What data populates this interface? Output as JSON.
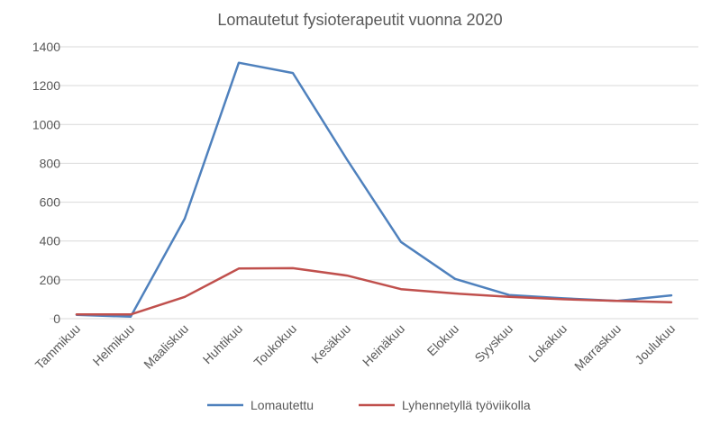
{
  "chart_data": {
    "type": "line",
    "title": "Lomautetut fysioterapeutit vuonna 2020",
    "xlabel": "",
    "ylabel": "",
    "categories": [
      "Tammikuu",
      "Helmikuu",
      "Maaliskuu",
      "Huhtikuu",
      "Toukokuu",
      "Kesäkuu",
      "Heinäkuu",
      "Elokuu",
      "Syyskuu",
      "Lokakuu",
      "Marraskuu",
      "Joulukuu"
    ],
    "ylim": [
      0,
      1400
    ],
    "yticks": [
      0,
      200,
      400,
      600,
      800,
      1000,
      1200,
      1400
    ],
    "grid": true,
    "legend_position": "bottom",
    "series": [
      {
        "name": "Lomautettu",
        "color": "#4f81bd",
        "values": [
          20,
          10,
          515,
          1318,
          1265,
          820,
          395,
          205,
          122,
          105,
          92,
          120
        ]
      },
      {
        "name": "Lyhennetyllä työviikolla",
        "color": "#c0504d",
        "values": [
          22,
          22,
          112,
          258,
          260,
          222,
          152,
          130,
          112,
          100,
          92,
          85
        ]
      }
    ]
  }
}
